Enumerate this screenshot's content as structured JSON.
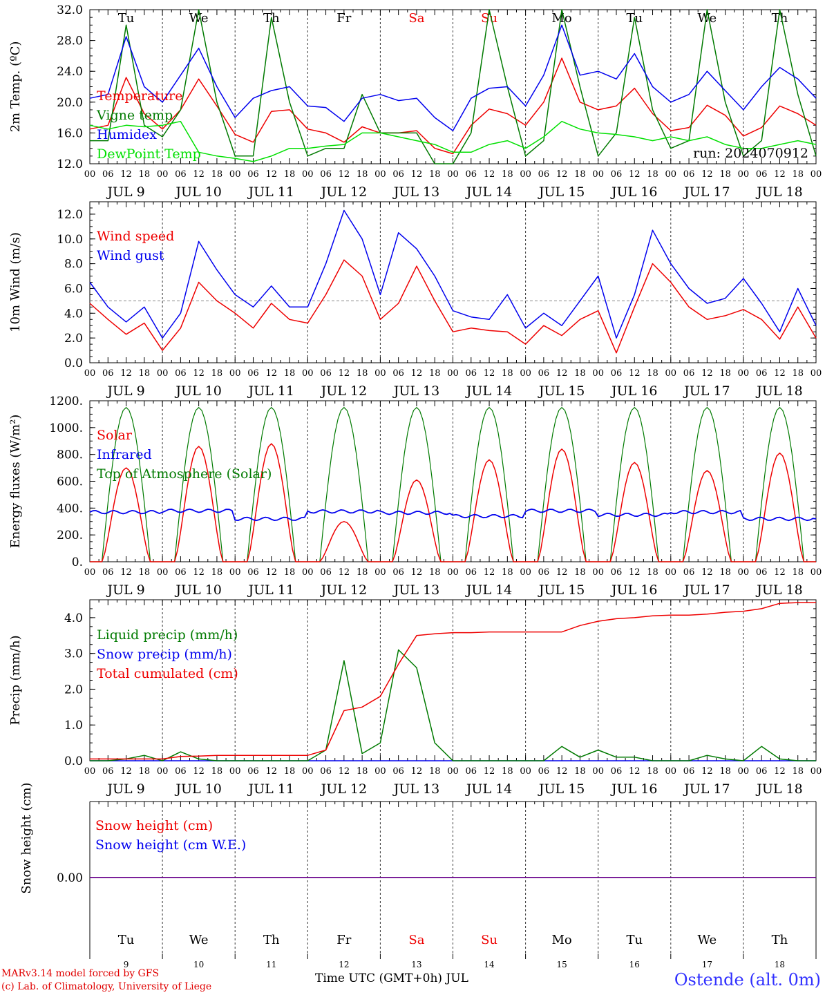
{
  "footer": {
    "credit_line1": "MARv3.14 model forced by GFS",
    "credit_line2": "(c) Lab. of Climatology, University of Liege",
    "station": "Ostende (alt. 0m)",
    "xaxis_title": "Time UTC (GMT+0h) JUL"
  },
  "colors": {
    "red": "#ee0000",
    "blue": "#0000ee",
    "green": "#007a00",
    "lightgreen": "#00e000",
    "purple": "#7a007a",
    "grid": "#555555"
  },
  "chart_data": [
    {
      "type": "line",
      "ylabel": "2m Temp. (ºC)",
      "ylim": [
        12,
        32
      ],
      "yticks": [
        "12.0",
        "16.0",
        "20.0",
        "24.0",
        "28.0",
        "32.0"
      ],
      "ytick_values": [
        12,
        16,
        20,
        24,
        28,
        32
      ],
      "days": [
        "Tu",
        "We",
        "Th",
        "Fr",
        "Sa",
        "Su",
        "Mo",
        "Tu",
        "We",
        "Th"
      ],
      "weekend_days": [
        4,
        5
      ],
      "date_labels": [
        "JUL  9",
        "JUL 10",
        "JUL 11",
        "JUL 12",
        "JUL 13",
        "JUL 14",
        "JUL 15",
        "JUL 16",
        "JUL 17",
        "JUL 18"
      ],
      "hour_labels": [
        "00",
        "06",
        "12",
        "18"
      ],
      "annotation": "run: 2024070912",
      "x_hours": [
        0,
        6,
        12,
        18,
        24,
        30,
        36,
        42,
        48,
        54,
        60,
        66,
        72,
        78,
        84,
        90,
        96,
        102,
        108,
        114,
        120,
        126,
        132,
        138,
        144,
        150,
        156,
        162,
        168,
        174,
        180,
        186,
        192,
        198,
        204,
        210,
        216,
        222,
        228,
        234,
        240
      ],
      "series": [
        {
          "name": "Temperature",
          "color": "red",
          "values": [
            16.5,
            17.0,
            23.2,
            18.5,
            16.5,
            19.0,
            23.0,
            19.5,
            15.8,
            14.8,
            18.8,
            19.0,
            16.5,
            16.0,
            14.8,
            16.8,
            16.0,
            16.0,
            16.3,
            14.0,
            13.3,
            17.0,
            19.1,
            18.5,
            17.0,
            20.0,
            25.7,
            20.0,
            19.0,
            19.5,
            21.8,
            18.5,
            16.3,
            16.7,
            19.6,
            18.3,
            15.6,
            16.7,
            19.5,
            18.5,
            17.0
          ]
        },
        {
          "name": "Vigne temp",
          "color": "green",
          "values": [
            15.0,
            15.0,
            30.0,
            17.0,
            15.5,
            19.0,
            32.0,
            20.0,
            13.0,
            13.0,
            31.0,
            20.0,
            13.0,
            14.0,
            14.0,
            21.0,
            16.0,
            16.0,
            16.0,
            12.0,
            12.0,
            16.0,
            32.0,
            22.0,
            13.0,
            15.0,
            32.0,
            22.0,
            13.0,
            16.0,
            31.0,
            19.0,
            14.0,
            15.0,
            32.0,
            20.0,
            13.0,
            15.0,
            32.0,
            21.0,
            13.0
          ]
        },
        {
          "name": "Humidex",
          "color": "blue",
          "values": [
            20.5,
            21.0,
            28.5,
            22.0,
            20.0,
            23.5,
            27.0,
            22.0,
            18.0,
            20.5,
            21.5,
            22.0,
            19.5,
            19.3,
            17.5,
            20.5,
            21.0,
            20.2,
            20.5,
            18.0,
            16.3,
            20.5,
            21.8,
            22.0,
            19.5,
            23.5,
            30.0,
            23.5,
            24.0,
            23.0,
            26.3,
            22.0,
            20.0,
            21.0,
            24.0,
            21.5,
            19.0,
            22.0,
            24.5,
            23.0,
            20.5
          ]
        },
        {
          "name": "DewPoint Temp",
          "color": "lightgreen",
          "values": [
            17.0,
            16.5,
            17.0,
            16.8,
            17.0,
            17.5,
            13.5,
            13.0,
            12.7,
            12.3,
            13.0,
            14.0,
            14.0,
            14.3,
            14.5,
            16.0,
            16.0,
            15.5,
            15.0,
            14.5,
            13.5,
            13.5,
            14.5,
            15.0,
            14.0,
            15.5,
            17.5,
            16.5,
            16.0,
            15.8,
            15.5,
            15.0,
            15.5,
            15.0,
            15.5,
            14.5,
            14.0,
            14.0,
            14.5,
            15.0,
            14.5
          ]
        }
      ]
    },
    {
      "type": "line",
      "ylabel": "10m Wind (m/s)",
      "ylim": [
        0,
        13
      ],
      "yticks": [
        "0.0",
        "2.0",
        "4.0",
        "6.0",
        "8.0",
        "10.0",
        "12.0"
      ],
      "ytick_values": [
        0,
        2,
        4,
        6,
        8,
        10,
        12
      ],
      "reference_line": 5,
      "date_labels": [
        "JUL  9",
        "JUL 10",
        "JUL 11",
        "JUL 12",
        "JUL 13",
        "JUL 14",
        "JUL 15",
        "JUL 16",
        "JUL 17",
        "JUL 18"
      ],
      "hour_labels": [
        "00",
        "06",
        "12",
        "18"
      ],
      "x_hours": [
        0,
        6,
        12,
        18,
        24,
        30,
        36,
        42,
        48,
        54,
        60,
        66,
        72,
        78,
        84,
        90,
        96,
        102,
        108,
        114,
        120,
        126,
        132,
        138,
        144,
        150,
        156,
        162,
        168,
        174,
        180,
        186,
        192,
        198,
        204,
        210,
        216,
        222,
        228,
        234,
        240
      ],
      "series": [
        {
          "name": "Wind speed",
          "color": "red",
          "values": [
            4.8,
            3.5,
            2.3,
            3.2,
            1.0,
            2.8,
            6.5,
            5.0,
            4.0,
            2.8,
            4.8,
            3.5,
            3.2,
            5.5,
            8.3,
            7.0,
            3.5,
            4.8,
            7.8,
            5.0,
            2.5,
            2.8,
            2.6,
            2.5,
            1.5,
            3.0,
            2.2,
            3.5,
            4.2,
            0.8,
            4.5,
            8.0,
            6.5,
            4.5,
            3.5,
            3.8,
            4.3,
            3.5,
            1.9,
            4.5,
            2.0
          ]
        },
        {
          "name": "Wind gust",
          "color": "blue",
          "values": [
            6.5,
            4.5,
            3.3,
            4.5,
            2.0,
            4.0,
            9.8,
            7.5,
            5.5,
            4.5,
            6.2,
            4.5,
            4.5,
            8.0,
            12.3,
            10.0,
            5.5,
            10.5,
            9.2,
            7.0,
            4.2,
            3.7,
            3.5,
            5.5,
            2.8,
            4.0,
            3.0,
            5.0,
            7.0,
            2.0,
            5.5,
            10.7,
            8.0,
            6.0,
            4.8,
            5.2,
            6.8,
            4.8,
            2.5,
            6.0,
            3.0
          ]
        }
      ]
    },
    {
      "type": "line",
      "ylabel": "Energy fluxes (W/m²)",
      "ylim": [
        0,
        1200
      ],
      "yticks": [
        "0.",
        "200.",
        "400.",
        "600.",
        "800.",
        "1000.",
        "1200."
      ],
      "ytick_values": [
        0,
        200,
        400,
        600,
        800,
        1000,
        1200
      ],
      "date_labels": [
        "JUL  9",
        "JUL 10",
        "JUL 11",
        "JUL 12",
        "JUL 13",
        "JUL 14",
        "JUL 15",
        "JUL 16",
        "JUL 17",
        "JUL 18"
      ],
      "hour_labels": [
        "00",
        "06",
        "12",
        "18"
      ],
      "daily_peak_toa": 1150,
      "daily_peak_solar": [
        700,
        860,
        880,
        300,
        610,
        760,
        840,
        740,
        680,
        810
      ],
      "infrared_level": [
        370,
        380,
        320,
        375,
        365,
        340,
        380,
        350,
        370,
        320
      ],
      "series": [
        {
          "name": "Solar",
          "color": "red"
        },
        {
          "name": "Infrared",
          "color": "blue"
        },
        {
          "name": "Top of Atmosphere (Solar)",
          "color": "green"
        }
      ]
    },
    {
      "type": "line",
      "ylabel": "Precip (mm/h)",
      "ylim": [
        0,
        4.5
      ],
      "yticks": [
        "0.0",
        "1.0",
        "2.0",
        "3.0",
        "4.0"
      ],
      "ytick_values": [
        0,
        1,
        2,
        3,
        4
      ],
      "date_labels": [
        "JUL  9",
        "JUL 10",
        "JUL 11",
        "JUL 12",
        "JUL 13",
        "JUL 14",
        "JUL 15",
        "JUL 16",
        "JUL 17",
        "JUL 18"
      ],
      "hour_labels": [
        "00",
        "06",
        "12",
        "18"
      ],
      "x_hours": [
        0,
        6,
        12,
        18,
        24,
        30,
        36,
        42,
        48,
        54,
        60,
        66,
        72,
        78,
        84,
        90,
        96,
        102,
        108,
        114,
        120,
        126,
        132,
        138,
        144,
        150,
        156,
        162,
        168,
        174,
        180,
        186,
        192,
        198,
        204,
        210,
        216,
        222,
        228,
        234,
        240
      ],
      "series": [
        {
          "name": "Liquid precip (mm/h)",
          "color": "green",
          "values": [
            0,
            0,
            0.05,
            0.15,
            0,
            0.25,
            0.05,
            0,
            0,
            0,
            0,
            0,
            0,
            0.3,
            2.8,
            0.2,
            0.5,
            3.1,
            2.6,
            0.5,
            0,
            0,
            0,
            0,
            0,
            0,
            0.4,
            0.1,
            0.3,
            0.1,
            0.1,
            0,
            0,
            0,
            0.15,
            0.05,
            0,
            0.4,
            0.05,
            0,
            0
          ]
        },
        {
          "name": "Snow precip (mm/h)",
          "color": "blue",
          "values": [
            0,
            0,
            0,
            0,
            0,
            0,
            0,
            0,
            0,
            0,
            0,
            0,
            0,
            0,
            0,
            0,
            0,
            0,
            0,
            0,
            0,
            0,
            0,
            0,
            0,
            0,
            0,
            0,
            0,
            0,
            0,
            0,
            0,
            0,
            0,
            0,
            0,
            0,
            0,
            0,
            0
          ]
        },
        {
          "name": "Total cumulated (cm)",
          "color": "red",
          "values": [
            0.05,
            0.05,
            0.05,
            0.05,
            0.05,
            0.12,
            0.13,
            0.15,
            0.15,
            0.15,
            0.15,
            0.15,
            0.15,
            0.3,
            1.4,
            1.5,
            1.8,
            2.7,
            3.5,
            3.55,
            3.58,
            3.58,
            3.6,
            3.6,
            3.6,
            3.6,
            3.6,
            3.78,
            3.9,
            3.97,
            4.0,
            4.05,
            4.07,
            4.07,
            4.1,
            4.15,
            4.18,
            4.25,
            4.4,
            4.42,
            4.42
          ]
        }
      ]
    },
    {
      "type": "line",
      "ylabel": "Snow height (cm)",
      "ylim": [
        -1,
        1
      ],
      "yticks": [
        "0.00"
      ],
      "ytick_values": [
        0
      ],
      "days": [
        "Tu",
        "We",
        "Th",
        "Fr",
        "Sa",
        "Su",
        "Mo",
        "Tu",
        "We",
        "Th"
      ],
      "weekend_days": [
        4,
        5
      ],
      "day_numbers": [
        "9",
        "10",
        "11",
        "12",
        "13",
        "14",
        "15",
        "16",
        "17",
        "18"
      ],
      "series": [
        {
          "name": "Snow height (cm)",
          "color": "red",
          "constant": 0
        },
        {
          "name": "Snow height (cm W.E.)",
          "color": "blue",
          "constant": 0
        }
      ]
    }
  ]
}
